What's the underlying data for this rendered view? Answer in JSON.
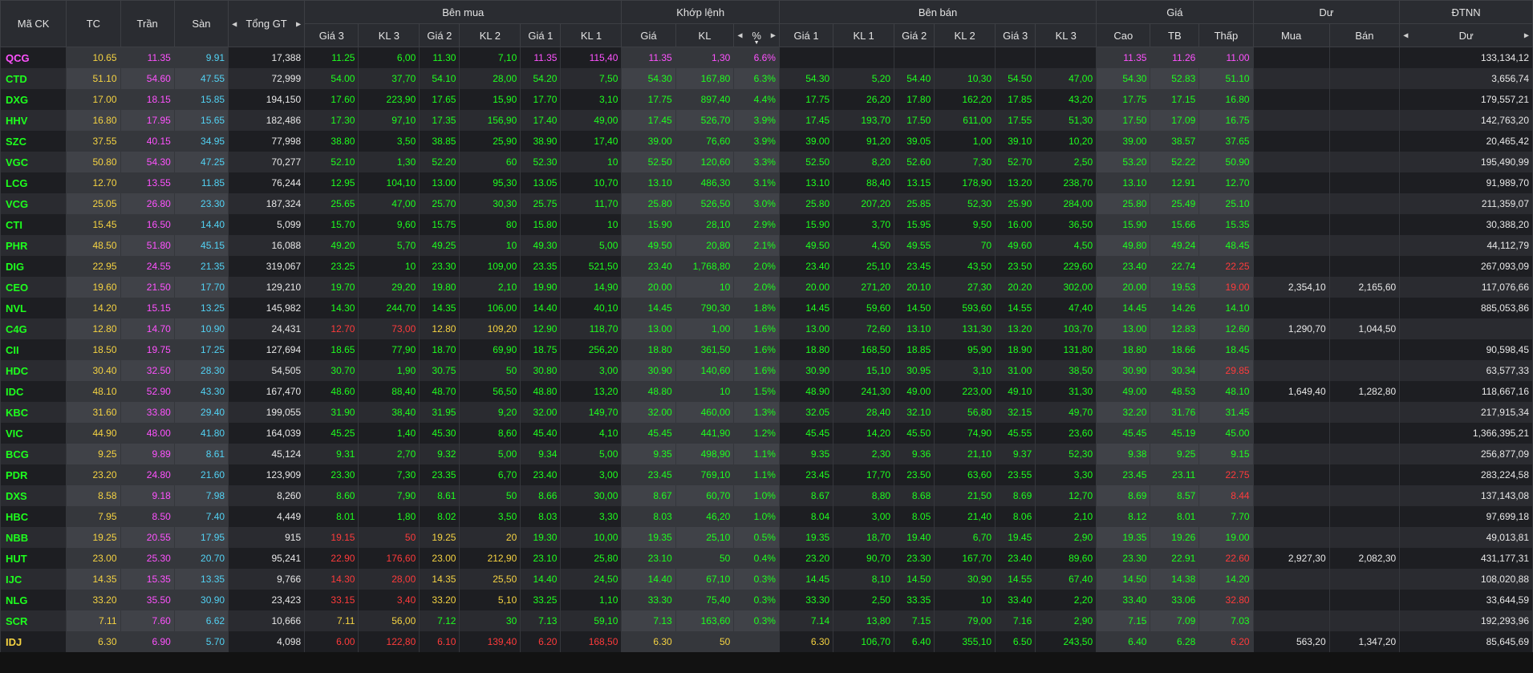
{
  "headers": {
    "symbol": "Mã CK",
    "ref": "TC",
    "ceil": "Trần",
    "floor": "Sàn",
    "total": "Tổng GT",
    "buy": "Bên mua",
    "match": "Khớp lệnh",
    "sell": "Bên bán",
    "price": "Giá",
    "residual": "Dư",
    "foreign": "ĐTNN",
    "buy_cols": [
      "Giá 3",
      "KL 3",
      "Giá 2",
      "KL 2",
      "Giá 1",
      "KL 1"
    ],
    "match_cols": [
      "Giá",
      "KL",
      "%"
    ],
    "sell_cols": [
      "Giá 1",
      "KL 1",
      "Giá 2",
      "KL 2",
      "Giá 3",
      "KL 3"
    ],
    "price_cols": [
      "Cao",
      "TB",
      "Thấp"
    ],
    "residual_cols": [
      "Mua",
      "Bán"
    ],
    "foreign_cols": [
      "Dư"
    ]
  },
  "colors": {
    "ref": "#f5d342",
    "ceil": "#ff52ff",
    "floor": "#52d3f5",
    "up": "#1eff1e",
    "down": "#ff3b3b",
    "neutral": "#e8e8e8"
  },
  "rows": [
    [
      "QCG",
      "10.65",
      "11.35",
      "9.91",
      "17,388",
      "11.25",
      "6,00",
      "11.30",
      "7,10",
      "11.35",
      "115,40",
      "11.35",
      "1,30",
      "6.6%",
      "",
      "",
      "",
      "",
      "",
      "",
      "11.35",
      "11.26",
      "11.00",
      "",
      "",
      "133,134,12"
    ],
    [
      "CTD",
      "51.10",
      "54.60",
      "47.55",
      "72,999",
      "54.00",
      "37,70",
      "54.10",
      "28,00",
      "54.20",
      "7,50",
      "54.30",
      "167,80",
      "6.3%",
      "54.30",
      "5,20",
      "54.40",
      "10,30",
      "54.50",
      "47,00",
      "54.30",
      "52.83",
      "51.10",
      "",
      "",
      "3,656,74"
    ],
    [
      "DXG",
      "17.00",
      "18.15",
      "15.85",
      "194,150",
      "17.60",
      "223,90",
      "17.65",
      "15,90",
      "17.70",
      "3,10",
      "17.75",
      "897,40",
      "4.4%",
      "17.75",
      "26,20",
      "17.80",
      "162,20",
      "17.85",
      "43,20",
      "17.75",
      "17.15",
      "16.80",
      "",
      "",
      "179,557,21"
    ],
    [
      "HHV",
      "16.80",
      "17.95",
      "15.65",
      "182,486",
      "17.30",
      "97,10",
      "17.35",
      "156,90",
      "17.40",
      "49,00",
      "17.45",
      "526,70",
      "3.9%",
      "17.45",
      "193,70",
      "17.50",
      "611,00",
      "17.55",
      "51,30",
      "17.50",
      "17.09",
      "16.75",
      "",
      "",
      "142,763,20"
    ],
    [
      "SZC",
      "37.55",
      "40.15",
      "34.95",
      "77,998",
      "38.80",
      "3,50",
      "38.85",
      "25,90",
      "38.90",
      "17,40",
      "39.00",
      "76,60",
      "3.9%",
      "39.00",
      "91,20",
      "39.05",
      "1,00",
      "39.10",
      "10,20",
      "39.00",
      "38.57",
      "37.65",
      "",
      "",
      "20,465,42"
    ],
    [
      "VGC",
      "50.80",
      "54.30",
      "47.25",
      "70,277",
      "52.10",
      "1,30",
      "52.20",
      "60",
      "52.30",
      "10",
      "52.50",
      "120,60",
      "3.3%",
      "52.50",
      "8,20",
      "52.60",
      "7,30",
      "52.70",
      "2,50",
      "53.20",
      "52.22",
      "50.90",
      "",
      "",
      "195,490,99"
    ],
    [
      "LCG",
      "12.70",
      "13.55",
      "11.85",
      "76,244",
      "12.95",
      "104,10",
      "13.00",
      "95,30",
      "13.05",
      "10,70",
      "13.10",
      "486,30",
      "3.1%",
      "13.10",
      "88,40",
      "13.15",
      "178,90",
      "13.20",
      "238,70",
      "13.10",
      "12.91",
      "12.70",
      "",
      "",
      "91,989,70"
    ],
    [
      "VCG",
      "25.05",
      "26.80",
      "23.30",
      "187,324",
      "25.65",
      "47,00",
      "25.70",
      "30,30",
      "25.75",
      "11,70",
      "25.80",
      "526,50",
      "3.0%",
      "25.80",
      "207,20",
      "25.85",
      "52,30",
      "25.90",
      "284,00",
      "25.80",
      "25.49",
      "25.10",
      "",
      "",
      "211,359,07"
    ],
    [
      "CTI",
      "15.45",
      "16.50",
      "14.40",
      "5,099",
      "15.70",
      "9,60",
      "15.75",
      "80",
      "15.80",
      "10",
      "15.90",
      "28,10",
      "2.9%",
      "15.90",
      "3,70",
      "15.95",
      "9,50",
      "16.00",
      "36,50",
      "15.90",
      "15.66",
      "15.35",
      "",
      "",
      "30,388,20"
    ],
    [
      "PHR",
      "48.50",
      "51.80",
      "45.15",
      "16,088",
      "49.20",
      "5,70",
      "49.25",
      "10",
      "49.30",
      "5,00",
      "49.50",
      "20,80",
      "2.1%",
      "49.50",
      "4,50",
      "49.55",
      "70",
      "49.60",
      "4,50",
      "49.80",
      "49.24",
      "48.45",
      "",
      "",
      "44,112,79"
    ],
    [
      "DIG",
      "22.95",
      "24.55",
      "21.35",
      "319,067",
      "23.25",
      "10",
      "23.30",
      "109,00",
      "23.35",
      "521,50",
      "23.40",
      "1,768,80",
      "2.0%",
      "23.40",
      "25,10",
      "23.45",
      "43,50",
      "23.50",
      "229,60",
      "23.40",
      "22.74",
      "22.25",
      "",
      "",
      "267,093,09"
    ],
    [
      "CEO",
      "19.60",
      "21.50",
      "17.70",
      "129,210",
      "19.70",
      "29,20",
      "19.80",
      "2,10",
      "19.90",
      "14,90",
      "20.00",
      "10",
      "2.0%",
      "20.00",
      "271,20",
      "20.10",
      "27,30",
      "20.20",
      "302,00",
      "20.00",
      "19.53",
      "19.00",
      "2,354,10",
      "2,165,60",
      "117,076,66"
    ],
    [
      "NVL",
      "14.20",
      "15.15",
      "13.25",
      "145,982",
      "14.30",
      "244,70",
      "14.35",
      "106,00",
      "14.40",
      "40,10",
      "14.45",
      "790,30",
      "1.8%",
      "14.45",
      "59,60",
      "14.50",
      "593,60",
      "14.55",
      "47,40",
      "14.45",
      "14.26",
      "14.10",
      "",
      "",
      "885,053,86"
    ],
    [
      "C4G",
      "12.80",
      "14.70",
      "10.90",
      "24,431",
      "12.70",
      "73,00",
      "12.80",
      "109,20",
      "12.90",
      "118,70",
      "13.00",
      "1,00",
      "1.6%",
      "13.00",
      "72,60",
      "13.10",
      "131,30",
      "13.20",
      "103,70",
      "13.00",
      "12.83",
      "12.60",
      "1,290,70",
      "1,044,50",
      ""
    ],
    [
      "CII",
      "18.50",
      "19.75",
      "17.25",
      "127,694",
      "18.65",
      "77,90",
      "18.70",
      "69,90",
      "18.75",
      "256,20",
      "18.80",
      "361,50",
      "1.6%",
      "18.80",
      "168,50",
      "18.85",
      "95,90",
      "18.90",
      "131,80",
      "18.80",
      "18.66",
      "18.45",
      "",
      "",
      "90,598,45"
    ],
    [
      "HDC",
      "30.40",
      "32.50",
      "28.30",
      "54,505",
      "30.70",
      "1,90",
      "30.75",
      "50",
      "30.80",
      "3,00",
      "30.90",
      "140,60",
      "1.6%",
      "30.90",
      "15,10",
      "30.95",
      "3,10",
      "31.00",
      "38,50",
      "30.90",
      "30.34",
      "29.85",
      "",
      "",
      "63,577,33"
    ],
    [
      "IDC",
      "48.10",
      "52.90",
      "43.30",
      "167,470",
      "48.60",
      "88,40",
      "48.70",
      "56,50",
      "48.80",
      "13,20",
      "48.80",
      "10",
      "1.5%",
      "48.90",
      "241,30",
      "49.00",
      "223,00",
      "49.10",
      "31,30",
      "49.00",
      "48.53",
      "48.10",
      "1,649,40",
      "1,282,80",
      "118,667,16"
    ],
    [
      "KBC",
      "31.60",
      "33.80",
      "29.40",
      "199,055",
      "31.90",
      "38,40",
      "31.95",
      "9,20",
      "32.00",
      "149,70",
      "32.00",
      "460,00",
      "1.3%",
      "32.05",
      "28,40",
      "32.10",
      "56,80",
      "32.15",
      "49,70",
      "32.20",
      "31.76",
      "31.45",
      "",
      "",
      "217,915,34"
    ],
    [
      "VIC",
      "44.90",
      "48.00",
      "41.80",
      "164,039",
      "45.25",
      "1,40",
      "45.30",
      "8,60",
      "45.40",
      "4,10",
      "45.45",
      "441,90",
      "1.2%",
      "45.45",
      "14,20",
      "45.50",
      "74,90",
      "45.55",
      "23,60",
      "45.45",
      "45.19",
      "45.00",
      "",
      "",
      "1,366,395,21"
    ],
    [
      "BCG",
      "9.25",
      "9.89",
      "8.61",
      "45,124",
      "9.31",
      "2,70",
      "9.32",
      "5,00",
      "9.34",
      "5,00",
      "9.35",
      "498,90",
      "1.1%",
      "9.35",
      "2,30",
      "9.36",
      "21,10",
      "9.37",
      "52,30",
      "9.38",
      "9.25",
      "9.15",
      "",
      "",
      "256,877,09"
    ],
    [
      "PDR",
      "23.20",
      "24.80",
      "21.60",
      "123,909",
      "23.30",
      "7,30",
      "23.35",
      "6,70",
      "23.40",
      "3,00",
      "23.45",
      "769,10",
      "1.1%",
      "23.45",
      "17,70",
      "23.50",
      "63,60",
      "23.55",
      "3,30",
      "23.45",
      "23.11",
      "22.75",
      "",
      "",
      "283,224,58"
    ],
    [
      "DXS",
      "8.58",
      "9.18",
      "7.98",
      "8,260",
      "8.60",
      "7,90",
      "8.61",
      "50",
      "8.66",
      "30,00",
      "8.67",
      "60,70",
      "1.0%",
      "8.67",
      "8,80",
      "8.68",
      "21,50",
      "8.69",
      "12,70",
      "8.69",
      "8.57",
      "8.44",
      "",
      "",
      "137,143,08"
    ],
    [
      "HBC",
      "7.95",
      "8.50",
      "7.40",
      "4,449",
      "8.01",
      "1,80",
      "8.02",
      "3,50",
      "8.03",
      "3,30",
      "8.03",
      "46,20",
      "1.0%",
      "8.04",
      "3,00",
      "8.05",
      "21,40",
      "8.06",
      "2,10",
      "8.12",
      "8.01",
      "7.70",
      "",
      "",
      "97,699,18"
    ],
    [
      "NBB",
      "19.25",
      "20.55",
      "17.95",
      "915",
      "19.15",
      "50",
      "19.25",
      "20",
      "19.30",
      "10,00",
      "19.35",
      "25,10",
      "0.5%",
      "19.35",
      "18,70",
      "19.40",
      "6,70",
      "19.45",
      "2,90",
      "19.35",
      "19.26",
      "19.00",
      "",
      "",
      "49,013,81"
    ],
    [
      "HUT",
      "23.00",
      "25.30",
      "20.70",
      "95,241",
      "22.90",
      "176,60",
      "23.00",
      "212,90",
      "23.10",
      "25,80",
      "23.10",
      "50",
      "0.4%",
      "23.20",
      "90,70",
      "23.30",
      "167,70",
      "23.40",
      "89,60",
      "23.30",
      "22.91",
      "22.60",
      "2,927,30",
      "2,082,30",
      "431,177,31"
    ],
    [
      "IJC",
      "14.35",
      "15.35",
      "13.35",
      "9,766",
      "14.30",
      "28,00",
      "14.35",
      "25,50",
      "14.40",
      "24,50",
      "14.40",
      "67,10",
      "0.3%",
      "14.45",
      "8,10",
      "14.50",
      "30,90",
      "14.55",
      "67,40",
      "14.50",
      "14.38",
      "14.20",
      "",
      "",
      "108,020,88"
    ],
    [
      "NLG",
      "33.20",
      "35.50",
      "30.90",
      "23,423",
      "33.15",
      "3,40",
      "33.20",
      "5,10",
      "33.25",
      "1,10",
      "33.30",
      "75,40",
      "0.3%",
      "33.30",
      "2,50",
      "33.35",
      "10",
      "33.40",
      "2,20",
      "33.40",
      "33.06",
      "32.80",
      "",
      "",
      "33,644,59"
    ],
    [
      "SCR",
      "7.11",
      "7.60",
      "6.62",
      "10,666",
      "7.11",
      "56,00",
      "7.12",
      "30",
      "7.13",
      "59,10",
      "7.13",
      "163,60",
      "0.3%",
      "7.14",
      "13,80",
      "7.15",
      "79,00",
      "7.16",
      "2,90",
      "7.15",
      "7.09",
      "7.03",
      "",
      "",
      "192,293,96"
    ],
    [
      "IDJ",
      "6.30",
      "6.90",
      "5.70",
      "4,098",
      "6.00",
      "122,80",
      "6.10",
      "139,40",
      "6.20",
      "168,50",
      "6.30",
      "50",
      "",
      "6.30",
      "106,70",
      "6.40",
      "355,10",
      "6.50",
      "243,50",
      "6.40",
      "6.28",
      "6.20",
      "563,20",
      "1,347,20",
      "85,645,69"
    ]
  ],
  "row_colors": [
    "pyp c w g g g g p p p p p p p p p p p p p p g g w w w",
    "g y p c w g g g g g g g g g g g g g g g g g g y w w w",
    "g y p c w g g g g g g g g g g g g g g g g g g r w w w",
    "g y p c w g g g g g g g g g g g g g g g g g g r w w w",
    "g y p c w g g g g g g g g g g g g g g g g g g g w w w",
    "g y p c w g g g g g g g g g g g g g g g g g g g w w w",
    "g y p c w g g g g g g g g g g g g g g g g g g y w w w",
    "g y p c w g g g g g g g g g g g g g g g g g g g w w w",
    "g y p c w g g g g g g g g g g g g g g g g g g r w w w",
    "g y p c w g g g g g g g g g g g g g g g g g g r w w w",
    "g y p c w g g g g g g g g g g g g g g g g g r r w w w",
    "g y p c w g g g g g g g g g g g g g g g g g r r w w w",
    "g y p c w g g g g g g g g g g g g g g g g g g r w w w",
    "g y p c w r r y y g g g g g g g g g g g g g g r w w w",
    "g y p c w g g g g g g g g g g g g g g g g g g r w w w",
    "g y p c w g g g g g g g g g g g g g g g g g r r w w w",
    "g y p c w g g g g g g g g g g g g g g g g g g y w w w",
    "g y p c w g g g g g g g g g g g g g g g g g g r w w w",
    "g y p c w g g g g g g g g g g g g g g g g g g g w w w",
    "g y p c w g g g g g g g g g g g g g g g g g g r w w w",
    "g y p c w g g g g g g g g g g g g g g g g g r r w w w",
    "g y p c w g g g g g g g g g g g g g g g g g r r w w w",
    "g y p c w g g g g g g g g g g g g g g g g g g r w w w",
    "g y p c w r r y y g g g g g g g g g g g g g g r w w w",
    "g y p c w r r y y g g g g g g g g g g g g g r r w w w",
    "g y p c w r r y y g g g g g g g g g g g g g g r w w w",
    "g y p c w r r y y g g g g g g g g g g g g g r r w w w",
    "g y p c w y y g g g g g g g g g g g g g g g g g w w w",
    "y y p c w r r r r r r y y y y g g g g g g g r r w w w"
  ]
}
